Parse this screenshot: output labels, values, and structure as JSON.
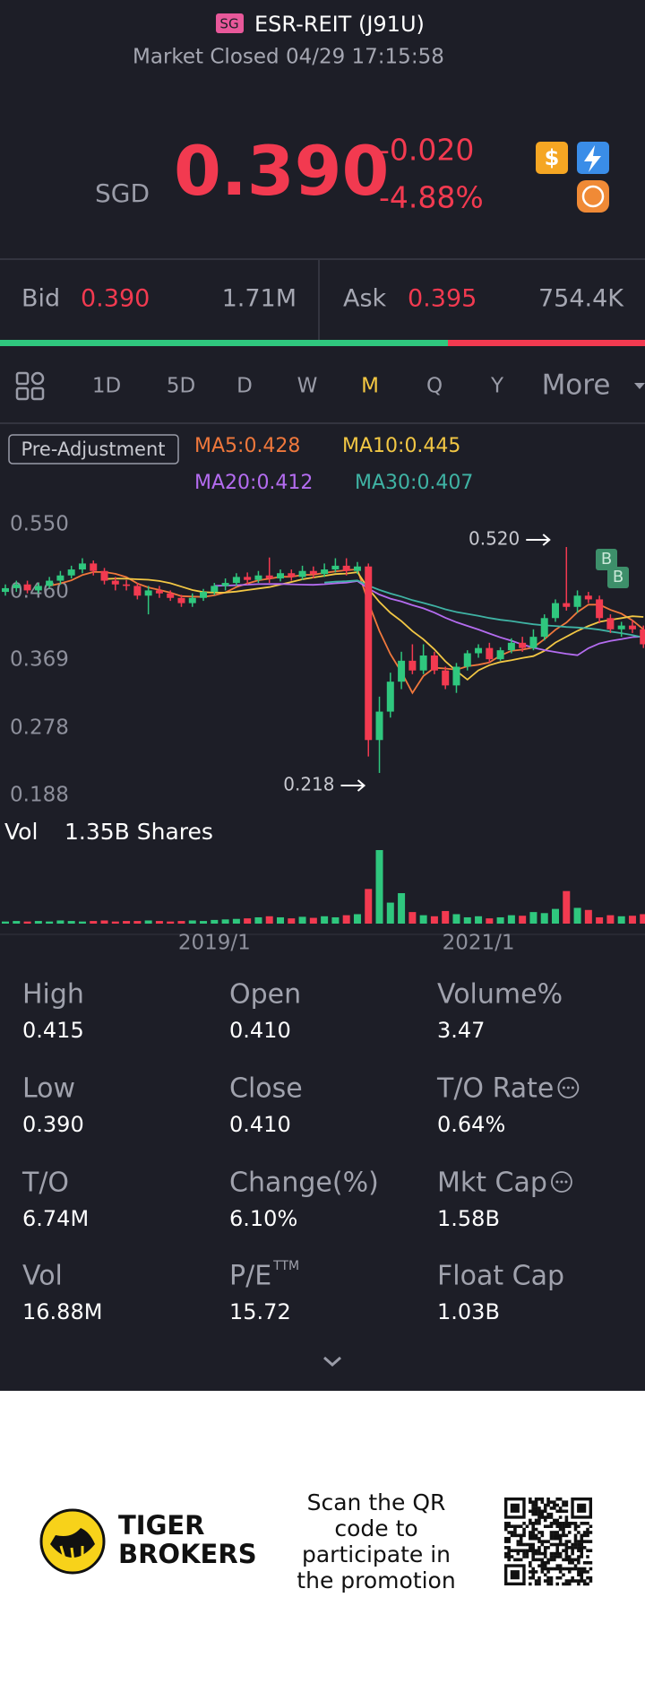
{
  "header": {
    "badge": "SG",
    "title": "ESR-REIT (J91U)",
    "status": "Market Closed 04/29 17:15:58"
  },
  "quote": {
    "currency": "SGD",
    "price": "0.390",
    "change": "-0.020",
    "change_pct": "-4.88%"
  },
  "bid_ask": {
    "bid_label": "Bid",
    "bid": "0.390",
    "bid_size": "1.71M",
    "ask_label": "Ask",
    "ask": "0.395",
    "ask_size": "754.4K"
  },
  "tabs": {
    "items": [
      "1D",
      "5D",
      "D",
      "W",
      "M",
      "Q",
      "Y",
      "More"
    ],
    "active": 4
  },
  "legend": {
    "adjustment": "Pre-Adjustment",
    "ma": [
      {
        "label": "MA5:0.428",
        "color": "#f0783c"
      },
      {
        "label": "MA10:0.445",
        "color": "#f2c744"
      },
      {
        "label": "MA20:0.412",
        "color": "#b46cf0"
      },
      {
        "label": "MA30:0.407",
        "color": "#3fb3a4"
      }
    ]
  },
  "chart_data": {
    "type": "candlestick",
    "categories": [
      null,
      null,
      null,
      null,
      null,
      null,
      null,
      null,
      null,
      null,
      null,
      null,
      null,
      null,
      null,
      null,
      null,
      null,
      null,
      "2019/1",
      null,
      null,
      null,
      null,
      null,
      null,
      null,
      null,
      null,
      null,
      null,
      null,
      null,
      null,
      null,
      null,
      null,
      null,
      null,
      null,
      null,
      null,
      null,
      "2021/1",
      null,
      null,
      null,
      null,
      null,
      null,
      null,
      null,
      null,
      null,
      null,
      null,
      null,
      null,
      null
    ],
    "open": [
      0.46,
      0.465,
      0.47,
      0.462,
      0.468,
      0.475,
      0.482,
      0.49,
      0.498,
      0.488,
      0.475,
      0.47,
      0.468,
      0.455,
      0.462,
      0.458,
      0.452,
      0.445,
      0.452,
      0.46,
      0.468,
      0.472,
      0.48,
      0.476,
      0.482,
      0.478,
      0.485,
      0.48,
      0.488,
      0.484,
      0.49,
      0.495,
      0.488,
      0.494,
      0.262,
      0.3,
      0.34,
      0.368,
      0.355,
      0.375,
      0.355,
      0.335,
      0.36,
      0.378,
      0.385,
      0.37,
      0.382,
      0.392,
      0.385,
      0.4,
      0.425,
      0.445,
      0.44,
      0.455,
      0.45,
      0.425,
      0.41,
      0.415,
      0.41
    ],
    "close": [
      0.465,
      0.47,
      0.462,
      0.468,
      0.475,
      0.482,
      0.49,
      0.498,
      0.488,
      0.475,
      0.47,
      0.468,
      0.455,
      0.462,
      0.458,
      0.452,
      0.445,
      0.452,
      0.46,
      0.468,
      0.472,
      0.48,
      0.476,
      0.482,
      0.478,
      0.485,
      0.48,
      0.488,
      0.484,
      0.49,
      0.495,
      0.488,
      0.494,
      0.262,
      0.3,
      0.34,
      0.368,
      0.355,
      0.375,
      0.355,
      0.335,
      0.36,
      0.378,
      0.385,
      0.37,
      0.382,
      0.392,
      0.385,
      0.4,
      0.425,
      0.445,
      0.44,
      0.455,
      0.45,
      0.425,
      0.41,
      0.415,
      0.41,
      0.39
    ],
    "high": [
      0.47,
      0.475,
      0.475,
      0.472,
      0.48,
      0.488,
      0.495,
      0.505,
      0.502,
      0.492,
      0.48,
      0.476,
      0.472,
      0.468,
      0.468,
      0.462,
      0.456,
      0.458,
      0.464,
      0.472,
      0.478,
      0.485,
      0.486,
      0.488,
      0.506,
      0.49,
      0.49,
      0.495,
      0.494,
      0.498,
      0.505,
      0.505,
      0.5,
      0.498,
      0.32,
      0.352,
      0.38,
      0.39,
      0.39,
      0.38,
      0.36,
      0.365,
      0.382,
      0.39,
      0.392,
      0.386,
      0.398,
      0.4,
      0.41,
      0.43,
      0.45,
      0.52,
      0.462,
      0.46,
      0.455,
      0.43,
      0.42,
      0.422,
      0.415
    ],
    "low": [
      0.455,
      0.46,
      0.458,
      0.458,
      0.465,
      0.47,
      0.478,
      0.485,
      0.482,
      0.47,
      0.462,
      0.462,
      0.45,
      0.43,
      0.452,
      0.448,
      0.44,
      0.44,
      0.448,
      0.456,
      0.462,
      0.468,
      0.47,
      0.472,
      0.472,
      0.474,
      0.475,
      0.476,
      0.478,
      0.48,
      0.486,
      0.482,
      0.484,
      0.24,
      0.218,
      0.292,
      0.33,
      0.35,
      0.35,
      0.35,
      0.33,
      0.325,
      0.355,
      0.372,
      0.365,
      0.368,
      0.378,
      0.38,
      0.382,
      0.395,
      0.42,
      0.435,
      0.432,
      0.445,
      0.418,
      0.405,
      0.4,
      0.405,
      0.385
    ],
    "volume": [
      4,
      5,
      4,
      5,
      4,
      6,
      5,
      4,
      5,
      6,
      4,
      5,
      5,
      6,
      5,
      4,
      5,
      6,
      5,
      7,
      8,
      9,
      10,
      12,
      14,
      12,
      10,
      13,
      11,
      14,
      12,
      16,
      18,
      66,
      140,
      40,
      58,
      22,
      16,
      14,
      24,
      18,
      12,
      14,
      10,
      12,
      16,
      15,
      22,
      20,
      28,
      62,
      30,
      26,
      12,
      16,
      14,
      15,
      18
    ],
    "up_color": "#2fc77e",
    "down_color": "#f23a50",
    "ylim": [
      0.188,
      0.55
    ],
    "yticks": [
      {
        "value": 0.55,
        "label": "0.550"
      },
      {
        "value": 0.46,
        "label": "0.460"
      },
      0.369,
      0.278,
      0.188
    ],
    "high_label": {
      "value": 0.52,
      "label": "0.520"
    },
    "low_label": 0.218,
    "markers": [
      "B",
      "B"
    ],
    "volume_label": "Vol",
    "volume_total": "1.35B Shares"
  },
  "stats": [
    {
      "label": "High",
      "value": "0.415"
    },
    {
      "label": "Open",
      "value": "0.410"
    },
    {
      "label": "Volume%",
      "value": "3.47"
    },
    {
      "label": "Low",
      "value": "0.390"
    },
    {
      "label": "Close",
      "value": "0.410"
    },
    {
      "label": "T/O Rate",
      "value": "0.64%"
    },
    {
      "label": "T/O",
      "value": "6.74M"
    },
    {
      "label": "Change(%)",
      "value": "6.10%"
    },
    {
      "label": "Mkt Cap",
      "value": "1.58B"
    },
    {
      "label": "Vol",
      "value": "16.88M"
    },
    {
      "label": "P/E",
      "sup": "TTM",
      "value": "15.72"
    },
    {
      "label": "Float Cap",
      "value": "1.03B"
    }
  ],
  "footer": {
    "brand": [
      "TIGER",
      "BROKERS"
    ],
    "promo": [
      "Scan the QR",
      "code to",
      "participate in",
      "the promotion"
    ]
  }
}
